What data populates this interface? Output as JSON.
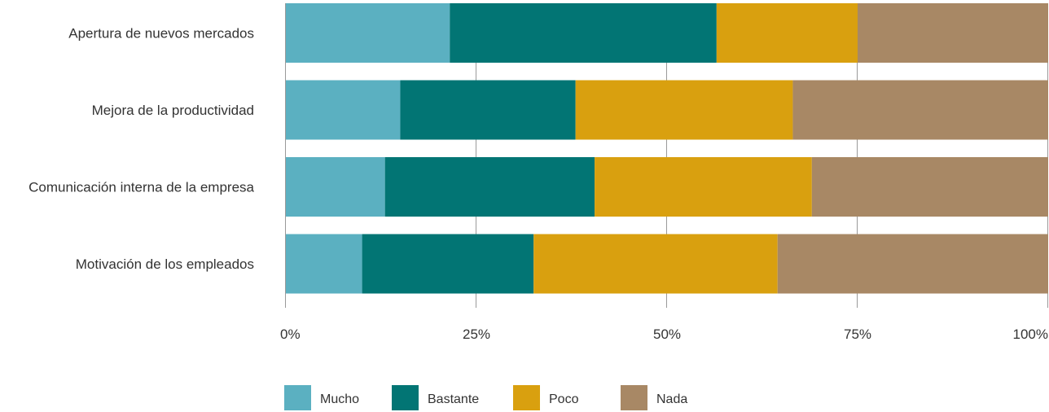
{
  "chart_data": {
    "type": "bar",
    "orientation": "horizontal",
    "stacked": true,
    "categories": [
      "Apertura de nuevos mercados",
      "Mejora de la productividad",
      "Comunicación interna de la empresa",
      "Motivación de los empleados"
    ],
    "series": [
      {
        "name": "Mucho",
        "color": "#5bb0c1",
        "values": [
          21.5,
          15.0,
          13.0,
          10.0
        ]
      },
      {
        "name": "Bastante",
        "color": "#027574",
        "values": [
          35.0,
          23.0,
          27.5,
          22.5
        ]
      },
      {
        "name": "Poco",
        "color": "#d9a00f",
        "values": [
          18.5,
          28.5,
          28.5,
          32.0
        ]
      },
      {
        "name": "Nada",
        "color": "#a88865",
        "values": [
          25.0,
          33.5,
          31.0,
          35.5
        ]
      }
    ],
    "xlim": [
      0,
      100
    ],
    "x_ticks": [
      "0%",
      "25%",
      "50%",
      "75%",
      "100%"
    ],
    "x_tick_values": [
      0,
      25,
      50,
      75,
      100
    ],
    "legend_position": "bottom-left",
    "grid": "vertical"
  }
}
